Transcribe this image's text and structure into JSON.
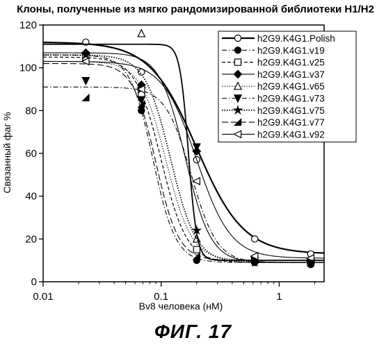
{
  "chart_data": {
    "type": "line",
    "title": "Клоны, полученные из мягко рандомизированной библиотеки H1/H2",
    "xlabel": "Bv8 человека (нМ)",
    "ylabel": "Связанный фаг %",
    "xscale": "log",
    "xlim": [
      0.01,
      2.4
    ],
    "ylim": [
      0,
      120
    ],
    "xticks": [
      0.01,
      0.1,
      1
    ],
    "xtick_labels": [
      "0.01",
      "0.1",
      "1"
    ],
    "yticks": [
      0,
      20,
      40,
      60,
      80,
      100,
      120
    ],
    "legend_position": "top-right",
    "grid": false,
    "series": [
      {
        "name": "h2G9.K4G1.Polish",
        "marker": "circle-open",
        "dash": "solid",
        "width": 2.2,
        "points": [
          [
            0.023,
            112
          ],
          [
            0.068,
            98
          ],
          [
            0.2,
            57
          ],
          [
            0.62,
            20
          ],
          [
            1.85,
            13
          ]
        ],
        "curve": {
          "top": 112,
          "bottom": 13,
          "ec50": 0.2,
          "hill": 2.2
        }
      },
      {
        "name": "h2G9.K4G1.v19",
        "marker": "circle-filled",
        "dash": "dashdot",
        "width": 1.1,
        "points": [
          [
            0.023,
            106
          ],
          [
            0.068,
            80
          ],
          [
            0.2,
            10
          ],
          [
            0.62,
            9
          ],
          [
            1.85,
            8
          ]
        ],
        "curve": {
          "top": 106,
          "bottom": 9,
          "ec50": 0.085,
          "hill": 4.5
        }
      },
      {
        "name": "h2G9.K4G1.v25",
        "marker": "square-open",
        "dash": "dashed",
        "width": 1.2,
        "points": [
          [
            0.023,
            105
          ],
          [
            0.068,
            88
          ],
          [
            0.2,
            15
          ],
          [
            0.62,
            10
          ],
          [
            1.85,
            9
          ]
        ],
        "curve": {
          "top": 105,
          "bottom": 9,
          "ec50": 0.1,
          "hill": 4
        }
      },
      {
        "name": "h2G9.K4G1.v37",
        "marker": "diamond-filled",
        "dash": "solid",
        "width": 1.1,
        "points": [
          [
            0.023,
            107
          ],
          [
            0.068,
            92
          ],
          [
            0.2,
            61
          ],
          [
            0.62,
            10
          ],
          [
            1.85,
            9
          ]
        ],
        "curve": {
          "top": 107,
          "bottom": 9,
          "ec50": 0.16,
          "hill": 4
        }
      },
      {
        "name": "h2G9.K4G1.v65",
        "marker": "triangle-up-open",
        "dash": "dotted",
        "width": 1.0,
        "points": [
          [
            0.068,
            116
          ],
          [
            0.2,
            20
          ],
          [
            0.62,
            11
          ],
          [
            1.85,
            10
          ]
        ],
        "curve": {
          "top": 103,
          "bottom": 10,
          "ec50": 0.11,
          "hill": 4
        }
      },
      {
        "name": "h2G9.K4G1.v73",
        "marker": "triangle-down-filled",
        "dash": "dashdot",
        "width": 1.1,
        "points": [
          [
            0.023,
            94
          ],
          [
            0.068,
            85
          ],
          [
            0.2,
            63
          ],
          [
            0.62,
            10
          ],
          [
            1.85,
            9
          ]
        ],
        "curve": {
          "top": 91,
          "bottom": 9,
          "ec50": 0.18,
          "hill": 4
        }
      },
      {
        "name": "h2G9.K4G1.v75",
        "marker": "star-filled",
        "dash": "dotted",
        "width": 1.8,
        "points": [
          [
            0.023,
            106
          ],
          [
            0.068,
            90
          ],
          [
            0.2,
            24
          ],
          [
            0.62,
            9
          ],
          [
            1.85,
            9
          ]
        ],
        "curve": {
          "top": 106,
          "bottom": 9,
          "ec50": 0.12,
          "hill": 4
        }
      },
      {
        "name": "h2G9.K4G1.v77",
        "marker": "triangle-filled",
        "dash": "longdash",
        "width": 1.1,
        "points": [
          [
            0.023,
            86
          ],
          [
            0.068,
            83
          ],
          [
            0.2,
            12
          ],
          [
            0.62,
            10
          ],
          [
            1.85,
            9
          ]
        ],
        "curve": {
          "top": 102,
          "bottom": 10,
          "ec50": 0.09,
          "hill": 4.5
        }
      },
      {
        "name": "h2G9.K4G1.v92",
        "marker": "triangle-left-open",
        "dash": "solid",
        "width": 1.1,
        "points": [
          [
            0.023,
            103
          ],
          [
            0.068,
            90
          ],
          [
            0.2,
            47
          ],
          [
            0.62,
            12
          ],
          [
            1.85,
            11
          ]
        ],
        "curve": {
          "top": 103,
          "bottom": 11,
          "ec50": 0.2,
          "hill": 3
        }
      },
      {
        "name": "",
        "marker": "none",
        "dash": "solid",
        "width": 1.8,
        "points": [],
        "curve": {
          "top": 111,
          "bottom": 10,
          "ec50": 0.17,
          "hill": 12
        }
      }
    ]
  },
  "figure_caption": "ФИГ. 17"
}
